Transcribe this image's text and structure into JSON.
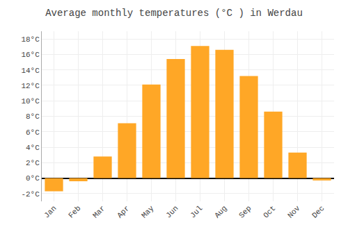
{
  "chart_data": {
    "type": "bar",
    "title": "Average monthly temperatures (°C ) in Werdau",
    "categories": [
      "Jan",
      "Feb",
      "Mar",
      "Apr",
      "May",
      "Jun",
      "Jul",
      "Aug",
      "Sep",
      "Oct",
      "Nov",
      "Dec"
    ],
    "values": [
      -1.7,
      -0.4,
      2.8,
      7.1,
      12.1,
      15.4,
      17.1,
      16.6,
      13.2,
      8.6,
      3.3,
      -0.3
    ],
    "color": "#FFA726",
    "ylim": [
      -3,
      19
    ],
    "yticks": [
      {
        "value": -2,
        "label": "-2°C"
      },
      {
        "value": 0,
        "label": "0°C"
      },
      {
        "value": 2,
        "label": "2°C"
      },
      {
        "value": 4,
        "label": "4°C"
      },
      {
        "value": 6,
        "label": "6°C"
      },
      {
        "value": 8,
        "label": "8°C"
      },
      {
        "value": 10,
        "label": "10°C"
      },
      {
        "value": 12,
        "label": "12°C"
      },
      {
        "value": 14,
        "label": "14°C"
      },
      {
        "value": 16,
        "label": "16°C"
      },
      {
        "value": 18,
        "label": "18°C"
      }
    ],
    "grid": true
  }
}
